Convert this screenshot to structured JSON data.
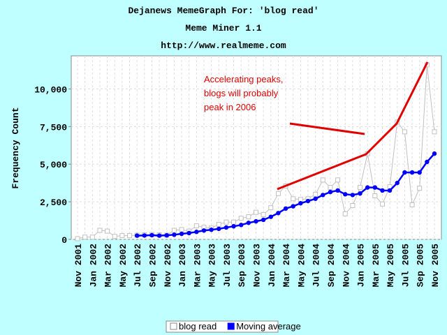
{
  "chart_data": {
    "type": "line",
    "title": "Dejanews MemeGraph For: 'blog read'",
    "subtitle": "Meme Miner 1.1",
    "source": "http://www.realmeme.com",
    "y_label": "Frequency Count",
    "annotation": [
      "Accelerating peaks,",
      "blogs will probably",
      "peak in 2006"
    ],
    "categories": [
      "Nov 2001",
      null,
      "Jan 2002",
      null,
      "Mar 2002",
      null,
      "May 2002",
      null,
      "Jul 2002",
      null,
      "Sep 2002",
      null,
      "Nov 2002",
      null,
      "Jan 2003",
      null,
      "Mar 2003",
      null,
      "May 2003",
      null,
      "Jul 2003",
      null,
      "Sep 2003",
      null,
      "Nov 2003",
      null,
      "Jan 2004",
      null,
      "Mar 2004",
      null,
      "May 2004",
      null,
      "Jul 2004",
      null,
      "Sep 2004",
      null,
      "Nov 2004",
      null,
      "Jan 2005",
      null,
      "Mar 2005",
      null,
      "May 2005",
      null,
      "Jul 2005",
      null,
      "Sep 2005",
      null,
      "Nov 2005"
    ],
    "series": [
      {
        "name": "blog read",
        "color": "#c0c0c0",
        "values": [
          50,
          150,
          150,
          600,
          550,
          200,
          250,
          250,
          280,
          300,
          320,
          300,
          280,
          600,
          650,
          550,
          900,
          800,
          750,
          1000,
          1150,
          1150,
          1400,
          1500,
          1800,
          1650,
          2100,
          3050,
          3550,
          2700,
          2650,
          2700,
          3000,
          3950,
          3450,
          3950,
          1700,
          2250,
          3450,
          5700,
          2900,
          2350,
          3500,
          7800,
          7150,
          2300,
          3400,
          11600,
          7150
        ]
      },
      {
        "name": "Moving average",
        "color": "#0000ff",
        "values": [
          null,
          null,
          null,
          null,
          null,
          null,
          null,
          null,
          250,
          260,
          280,
          250,
          270,
          310,
          370,
          420,
          500,
          590,
          640,
          700,
          790,
          870,
          960,
          1100,
          1200,
          1300,
          1500,
          1750,
          2050,
          2200,
          2400,
          2550,
          2700,
          2950,
          3150,
          3250,
          3000,
          2950,
          3050,
          3450,
          3450,
          3250,
          3250,
          3750,
          4450,
          4450,
          4450,
          5150,
          5700
        ]
      }
    ],
    "ylim": [
      0,
      12200
    ],
    "yticks": [
      0,
      {
        "value": 2500,
        "label": "2,500"
      },
      {
        "value": 5000,
        "label": "5,000"
      },
      {
        "value": 7500,
        "label": "7,500"
      },
      {
        "value": 10000,
        "label": "10,000"
      }
    ],
    "grid": true,
    "legend": "bottom"
  }
}
